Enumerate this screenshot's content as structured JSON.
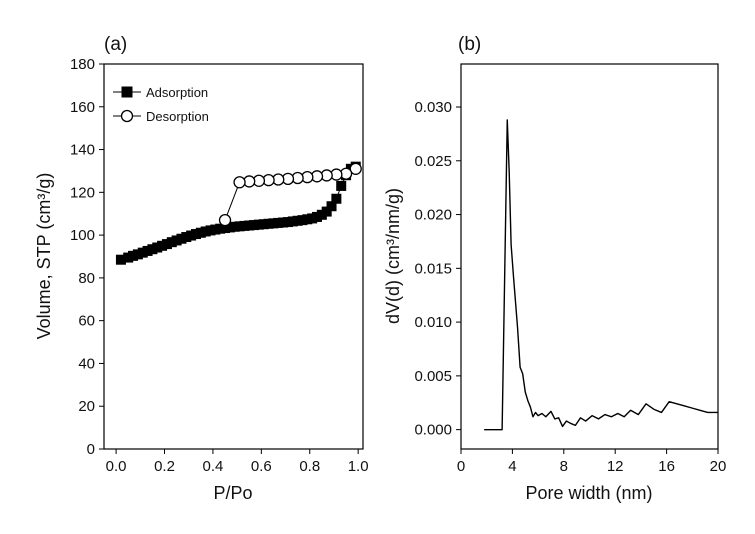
{
  "chart_data": [
    {
      "panel_label": "(a)",
      "type": "scatter",
      "xlabel": "P/Po",
      "ylabel": "Volume, STP (cm³/g)",
      "xlim": [
        -0.05,
        1.02
      ],
      "ylim": [
        0,
        180
      ],
      "xticks": [
        0.0,
        0.2,
        0.4,
        0.6,
        0.8,
        1.0
      ],
      "xtick_labels": [
        "0.0",
        "0.2",
        "0.4",
        "0.6",
        "0.8",
        "1.0"
      ],
      "yticks": [
        0,
        20,
        40,
        60,
        80,
        100,
        120,
        140,
        160,
        180
      ],
      "ytick_labels": [
        "0",
        "20",
        "40",
        "60",
        "80",
        "100",
        "120",
        "140",
        "160",
        "180"
      ],
      "grid": false,
      "legend_position": "top-left",
      "series": [
        {
          "name": "Adsorption",
          "marker": "filled-square",
          "color": "#000000",
          "x": [
            0.02,
            0.05,
            0.07,
            0.09,
            0.11,
            0.13,
            0.15,
            0.17,
            0.19,
            0.21,
            0.23,
            0.25,
            0.27,
            0.29,
            0.31,
            0.33,
            0.35,
            0.37,
            0.39,
            0.41,
            0.43,
            0.45,
            0.47,
            0.49,
            0.51,
            0.53,
            0.55,
            0.57,
            0.59,
            0.61,
            0.63,
            0.65,
            0.67,
            0.69,
            0.71,
            0.73,
            0.75,
            0.77,
            0.79,
            0.81,
            0.83,
            0.85,
            0.87,
            0.89,
            0.91,
            0.93,
            0.95,
            0.97,
            0.99
          ],
          "y": [
            88.5,
            89.5,
            90.3,
            91.0,
            91.8,
            92.6,
            93.4,
            94.2,
            95.0,
            95.8,
            96.7,
            97.5,
            98.3,
            99.1,
            99.8,
            100.5,
            101.1,
            101.7,
            102.2,
            102.6,
            103.0,
            103.3,
            103.6,
            103.9,
            104.1,
            104.3,
            104.5,
            104.7,
            104.9,
            105.1,
            105.3,
            105.5,
            105.7,
            105.9,
            106.1,
            106.4,
            106.7,
            107.0,
            107.4,
            107.8,
            108.5,
            109.5,
            111.0,
            113.5,
            117.0,
            123.0,
            128.0,
            131.0,
            132.0
          ]
        },
        {
          "name": "Desorption",
          "marker": "open-circle",
          "color": "#000000",
          "x": [
            0.99,
            0.95,
            0.91,
            0.87,
            0.83,
            0.79,
            0.75,
            0.71,
            0.67,
            0.63,
            0.59,
            0.55,
            0.51,
            0.45
          ],
          "y": [
            131.0,
            128.7,
            128.3,
            127.9,
            127.5,
            127.1,
            126.7,
            126.3,
            126.0,
            125.7,
            125.4,
            125.1,
            124.7,
            107.0
          ]
        }
      ]
    },
    {
      "panel_label": "(b)",
      "type": "line",
      "xlabel": "Pore width (nm)",
      "ylabel": "dV(d) (cm³/nm/g)",
      "xlim": [
        0,
        20
      ],
      "ylim": [
        -0.0018,
        0.034
      ],
      "xticks": [
        0,
        4,
        8,
        12,
        16,
        20
      ],
      "xtick_labels": [
        "0",
        "4",
        "8",
        "12",
        "16",
        "20"
      ],
      "yticks": [
        0.0,
        0.005,
        0.01,
        0.015,
        0.02,
        0.025,
        0.03
      ],
      "ytick_labels": [
        "0.000",
        "0.005",
        "0.010",
        "0.015",
        "0.020",
        "0.025",
        "0.030"
      ],
      "grid": false,
      "series": [
        {
          "color": "#000000",
          "x": [
            1.8,
            3.2,
            3.6,
            3.75,
            3.9,
            4.1,
            4.4,
            4.6,
            4.8,
            5.0,
            5.2,
            5.4,
            5.6,
            5.8,
            6.0,
            6.3,
            6.6,
            7.0,
            7.3,
            7.6,
            7.9,
            8.2,
            8.5,
            8.9,
            9.3,
            9.7,
            10.2,
            10.7,
            11.2,
            11.7,
            12.2,
            12.7,
            13.2,
            13.8,
            14.4,
            15.0,
            15.6,
            16.2,
            16.8,
            17.4,
            18.0,
            18.6,
            19.2,
            20.0
          ],
          "y": [
            0.0,
            0.0,
            0.0288,
            0.024,
            0.0172,
            0.014,
            0.0095,
            0.0058,
            0.0052,
            0.0035,
            0.0027,
            0.0021,
            0.0012,
            0.0016,
            0.0013,
            0.0015,
            0.0012,
            0.0017,
            0.001,
            0.0011,
            0.0003,
            0.0008,
            0.0006,
            0.0004,
            0.0011,
            0.0008,
            0.0013,
            0.001,
            0.0014,
            0.0012,
            0.0015,
            0.0012,
            0.0018,
            0.0014,
            0.0024,
            0.0019,
            0.0016,
            0.0026,
            0.0024,
            0.0022,
            0.002,
            0.0018,
            0.0016,
            0.0016
          ]
        }
      ]
    }
  ]
}
